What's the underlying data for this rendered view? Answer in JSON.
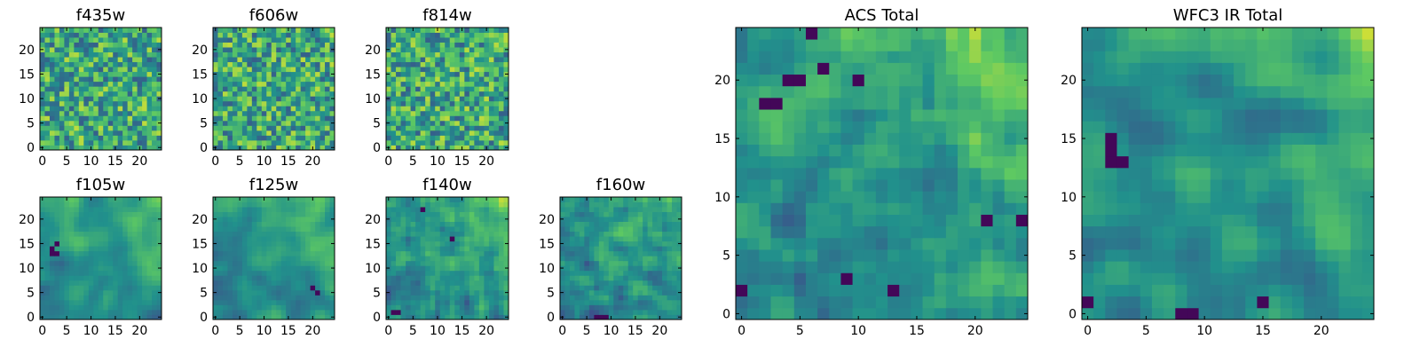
{
  "figure": {
    "colormap": "viridis",
    "colormap_stops": [
      "#440154",
      "#3b528b",
      "#21918c",
      "#5ec962",
      "#fde725"
    ]
  },
  "chart_data": [
    {
      "type": "heatmap",
      "title": "f435w",
      "grid": [
        25,
        25
      ],
      "xlim": [
        -0.5,
        24.5
      ],
      "ylim": [
        -0.5,
        24.5
      ],
      "xticks": [
        0,
        5,
        10,
        15,
        20
      ],
      "yticks": [
        0,
        5,
        10,
        15,
        20
      ],
      "field": "noise",
      "smoothness": 0,
      "seed": 11,
      "dark_spots": []
    },
    {
      "type": "heatmap",
      "title": "f606w",
      "grid": [
        25,
        25
      ],
      "xlim": [
        -0.5,
        24.5
      ],
      "ylim": [
        -0.5,
        24.5
      ],
      "xticks": [
        0,
        5,
        10,
        15,
        20
      ],
      "yticks": [
        0,
        5,
        10,
        15,
        20
      ],
      "field": "noise",
      "smoothness": 0,
      "seed": 23,
      "dark_spots": []
    },
    {
      "type": "heatmap",
      "title": "f814w",
      "grid": [
        25,
        25
      ],
      "xlim": [
        -0.5,
        24.5
      ],
      "ylim": [
        -0.5,
        24.5
      ],
      "xticks": [
        0,
        5,
        10,
        15,
        20
      ],
      "yticks": [
        0,
        5,
        10,
        15,
        20
      ],
      "field": "noise",
      "smoothness": 0,
      "seed": 37,
      "dark_spots": []
    },
    {
      "type": "heatmap",
      "title": "f105w",
      "grid": [
        25,
        25
      ],
      "xlim": [
        -0.5,
        24.5
      ],
      "ylim": [
        -0.5,
        24.5
      ],
      "xticks": [
        0,
        5,
        10,
        15,
        20
      ],
      "yticks": [
        0,
        5,
        10,
        15,
        20
      ],
      "field": "smooth",
      "smoothness": 2,
      "seed": 41,
      "dark_spots": [
        [
          2,
          13
        ],
        [
          2,
          14
        ],
        [
          3,
          13
        ],
        [
          3,
          15
        ]
      ]
    },
    {
      "type": "heatmap",
      "title": "f125w",
      "grid": [
        25,
        25
      ],
      "xlim": [
        -0.5,
        24.5
      ],
      "ylim": [
        -0.5,
        24.5
      ],
      "xticks": [
        0,
        5,
        10,
        15,
        20
      ],
      "yticks": [
        0,
        5,
        10,
        15,
        20
      ],
      "field": "smooth",
      "smoothness": 2,
      "seed": 53,
      "dark_spots": [
        [
          20,
          6
        ],
        [
          21,
          5
        ]
      ]
    },
    {
      "type": "heatmap",
      "title": "f140w",
      "grid": [
        25,
        25
      ],
      "xlim": [
        -0.5,
        24.5
      ],
      "ylim": [
        -0.5,
        24.5
      ],
      "xticks": [
        0,
        5,
        10,
        15,
        20
      ],
      "yticks": [
        0,
        5,
        10,
        15,
        20
      ],
      "field": "smooth",
      "smoothness": 1,
      "seed": 67,
      "dark_spots": [
        [
          7,
          22
        ],
        [
          1,
          1
        ],
        [
          2,
          1
        ],
        [
          13,
          16
        ]
      ]
    },
    {
      "type": "heatmap",
      "title": "f160w",
      "grid": [
        25,
        25
      ],
      "xlim": [
        -0.5,
        24.5
      ],
      "ylim": [
        -0.5,
        24.5
      ],
      "xticks": [
        0,
        5,
        10,
        15,
        20
      ],
      "yticks": [
        0,
        5,
        10,
        15,
        20
      ],
      "field": "smooth",
      "smoothness": 1,
      "seed": 71,
      "dark_spots": [
        [
          7,
          0
        ],
        [
          8,
          0
        ],
        [
          9,
          0
        ]
      ]
    },
    {
      "type": "heatmap",
      "title": "ACS Total",
      "grid": [
        25,
        25
      ],
      "xlim": [
        -0.5,
        24.5
      ],
      "ylim": [
        -0.5,
        24.5
      ],
      "xticks": [
        0,
        5,
        10,
        15,
        20
      ],
      "yticks": [
        0,
        5,
        10,
        15,
        20
      ],
      "field": "noise_bright",
      "smoothness": 1,
      "seed": 83,
      "dark_spots": [
        [
          6,
          24
        ],
        [
          5,
          20
        ],
        [
          4,
          20
        ],
        [
          7,
          21
        ],
        [
          10,
          20
        ],
        [
          2,
          18
        ],
        [
          3,
          18
        ],
        [
          0,
          2
        ],
        [
          13,
          2
        ],
        [
          9,
          3
        ],
        [
          21,
          8
        ],
        [
          25,
          8
        ]
      ]
    },
    {
      "type": "heatmap",
      "title": "WFC3 IR Total",
      "grid": [
        25,
        25
      ],
      "xlim": [
        -0.5,
        24.5
      ],
      "ylim": [
        -0.5,
        24.5
      ],
      "xticks": [
        0,
        5,
        10,
        15,
        20
      ],
      "yticks": [
        0,
        5,
        10,
        15,
        20
      ],
      "field": "smooth",
      "smoothness": 2,
      "seed": 97,
      "dark_spots": [
        [
          2,
          15
        ],
        [
          2,
          14
        ],
        [
          2,
          13
        ],
        [
          3,
          13
        ],
        [
          8,
          0
        ],
        [
          9,
          0
        ],
        [
          0,
          1
        ],
        [
          15,
          1
        ]
      ]
    }
  ]
}
